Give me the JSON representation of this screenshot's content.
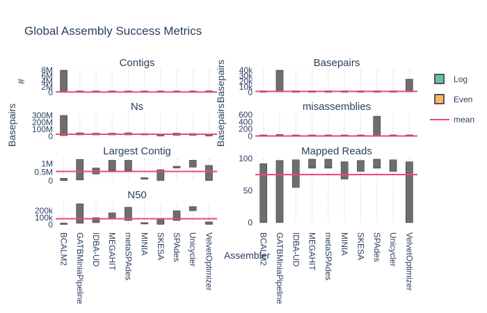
{
  "title": "Global Assembly Success Metrics",
  "colors": {
    "log": "#66c2a5",
    "even": "#fdb462",
    "mean": "#ef476f",
    "bar": "#555555",
    "grid": "#d0d6e0",
    "text": "#2a3f5f"
  },
  "legend": [
    {
      "label": "Log",
      "kind": "box",
      "color": "#66c2a5"
    },
    {
      "label": "Even",
      "kind": "box",
      "color": "#fdb462"
    },
    {
      "label": "mean",
      "kind": "line",
      "color": "#ef476f"
    }
  ],
  "chart_data": [
    {
      "type": "box",
      "title": "Contigs",
      "ylabel": "#",
      "yticks": [
        {
          "v": 0,
          "t": "0"
        },
        {
          "v": 2,
          "t": "2M"
        },
        {
          "v": 4,
          "t": "4M"
        },
        {
          "v": 6,
          "t": "6M"
        },
        {
          "v": 8,
          "t": "8M"
        }
      ],
      "ylim": [
        0,
        8
      ],
      "mean": 0.2,
      "categories": [
        "BCALM2",
        "GATBMiniaPipeline",
        "IDBA-UD",
        "MEGAHIT",
        "metaSPAdes",
        "MINIA",
        "SKESA",
        "SPAdes",
        "Unicycler",
        "VelvetOptimizer"
      ],
      "values": [
        [
          0.3,
          8.0
        ],
        [
          0.05,
          0.2
        ],
        [
          0.05,
          0.15
        ],
        [
          0.05,
          0.15
        ],
        [
          0.05,
          0.2
        ],
        [
          0.05,
          0.15
        ],
        [
          0.05,
          0.15
        ],
        [
          0.05,
          0.1
        ],
        [
          0.05,
          0.1
        ],
        [
          0.05,
          0.6
        ]
      ]
    },
    {
      "type": "box",
      "title": "Basepairs",
      "ylabel": "Basepairs",
      "yticks": [
        {
          "v": 0,
          "t": "0"
        },
        {
          "v": 10,
          "t": "10k"
        },
        {
          "v": 20,
          "t": "20k"
        },
        {
          "v": 30,
          "t": "30k"
        },
        {
          "v": 40,
          "t": "40k"
        }
      ],
      "ylim": [
        0,
        40
      ],
      "mean": 2,
      "categories": [
        "BCALM2",
        "GATBMiniaPipeline",
        "IDBA-UD",
        "MEGAHIT",
        "metaSPAdes",
        "MINIA",
        "SKESA",
        "SPAdes",
        "Unicycler",
        "VelvetOptimizer"
      ],
      "values": [
        [
          0.5,
          1.5
        ],
        [
          1,
          40
        ],
        [
          0.5,
          2
        ],
        [
          0.5,
          2
        ],
        [
          0.5,
          2
        ],
        [
          0.5,
          2
        ],
        [
          0.5,
          2
        ],
        [
          0.5,
          2
        ],
        [
          0.5,
          2
        ],
        [
          1,
          24
        ]
      ]
    },
    {
      "type": "box",
      "title": "Ns",
      "ylabel": "",
      "yticks": [
        {
          "v": 0,
          "t": "0"
        },
        {
          "v": 100,
          "t": "100M"
        },
        {
          "v": 200,
          "t": "200M"
        },
        {
          "v": 300,
          "t": "300M"
        }
      ],
      "ylim": [
        0,
        320
      ],
      "mean": 30,
      "categories": [
        "BCALM2",
        "GATBMiniaPipeline",
        "IDBA-UD",
        "MEGAHIT",
        "metaSPAdes",
        "MINIA",
        "SKESA",
        "SPAdes",
        "Unicycler",
        "VelvetOptimizer"
      ],
      "values": [
        [
          10,
          300
        ],
        [
          20,
          50
        ],
        [
          20,
          45
        ],
        [
          20,
          45
        ],
        [
          20,
          50
        ],
        [
          20,
          40
        ],
        [
          5,
          35
        ],
        [
          15,
          45
        ],
        [
          15,
          40
        ],
        [
          5,
          30
        ]
      ]
    },
    {
      "type": "box",
      "title": "misassemblies",
      "ylabel": "Basepairs",
      "yticks": [
        {
          "v": 0,
          "t": "0"
        },
        {
          "v": 200,
          "t": "200"
        },
        {
          "v": 400,
          "t": "400"
        },
        {
          "v": 600,
          "t": "600"
        }
      ],
      "ylim": [
        0,
        620
      ],
      "mean": 10,
      "categories": [
        "BCALM2",
        "GATBMiniaPipeline",
        "IDBA-UD",
        "MEGAHIT",
        "metaSPAdes",
        "MINIA",
        "SKESA",
        "SPAdes",
        "Unicycler",
        "VelvetOptimizer"
      ],
      "values": [
        [
          0,
          15
        ],
        [
          0,
          50
        ],
        [
          0,
          20
        ],
        [
          0,
          20
        ],
        [
          0,
          20
        ],
        [
          0,
          15
        ],
        [
          0,
          15
        ],
        [
          0,
          560
        ],
        [
          0,
          20
        ],
        [
          0,
          30
        ]
      ]
    },
    {
      "type": "box",
      "title": "Largest Contig",
      "ylabel": "",
      "yticks": [
        {
          "v": 0,
          "t": "0"
        },
        {
          "v": 0.5,
          "t": "0.5M"
        },
        {
          "v": 1,
          "t": "1M"
        }
      ],
      "ylim": [
        0,
        1.3
      ],
      "mean": 0.55,
      "categories": [
        "BCALM2",
        "GATBMiniaPipeline",
        "IDBA-UD",
        "MEGAHIT",
        "metaSPAdes",
        "MINIA",
        "SKESA",
        "SPAdes",
        "Unicycler",
        "VelvetOptimizer"
      ],
      "values": [
        [
          0.02,
          0.15
        ],
        [
          0.05,
          1.25
        ],
        [
          0.4,
          0.75
        ],
        [
          0.6,
          1.2
        ],
        [
          0.6,
          1.2
        ],
        [
          0.1,
          0.15
        ],
        [
          0.02,
          0.65
        ],
        [
          0.75,
          0.85
        ],
        [
          0.8,
          1.2
        ],
        [
          0.02,
          0.9
        ]
      ]
    },
    {
      "type": "box",
      "title": "Mapped Reads",
      "ylabel": "",
      "yticks": [
        {
          "v": 0,
          "t": "0"
        },
        {
          "v": 50,
          "t": "50"
        },
        {
          "v": 100,
          "t": "100"
        }
      ],
      "ylim": [
        0,
        100
      ],
      "mean": 75,
      "categories": [
        "BCALM2",
        "GATBMiniaPipeline",
        "IDBA-UD",
        "MEGAHIT",
        "metaSPAdes",
        "MINIA",
        "SKESA",
        "SPAdes",
        "Unicycler",
        "VelvetOptimizer"
      ],
      "values": [
        [
          0,
          92
        ],
        [
          0,
          97
        ],
        [
          55,
          98
        ],
        [
          85,
          99
        ],
        [
          85,
          99
        ],
        [
          68,
          95
        ],
        [
          80,
          97
        ],
        [
          85,
          99
        ],
        [
          80,
          98
        ],
        [
          0,
          95
        ]
      ]
    },
    {
      "type": "box",
      "title": "N50",
      "ylabel": "",
      "yticks": [
        {
          "v": 0,
          "t": "0"
        },
        {
          "v": 100,
          "t": "100k"
        },
        {
          "v": 200,
          "t": "200k"
        }
      ],
      "ylim": [
        0,
        310
      ],
      "mean": 85,
      "categories": [
        "BCALM2",
        "GATBMiniaPipeline",
        "IDBA-UD",
        "MEGAHIT",
        "metaSPAdes",
        "MINIA",
        "SKESA",
        "SPAdes",
        "Unicycler",
        "VelvetOptimizer"
      ],
      "values": [
        [
          3,
          20
        ],
        [
          20,
          300
        ],
        [
          30,
          100
        ],
        [
          80,
          170
        ],
        [
          60,
          250
        ],
        [
          10,
          20
        ],
        [
          5,
          80
        ],
        [
          60,
          200
        ],
        [
          200,
          260
        ],
        [
          5,
          40
        ]
      ]
    }
  ],
  "xlabel": "Assembler",
  "xticks": [
    "BCALM2",
    "GATBMiniaPipeline",
    "IDBA-UD",
    "MEGAHIT",
    "metaSPAdes",
    "MINIA",
    "SKESA",
    "SPAdes",
    "Unicycler",
    "VelvetOptimizer"
  ],
  "left_ylabel": "Basepairs"
}
